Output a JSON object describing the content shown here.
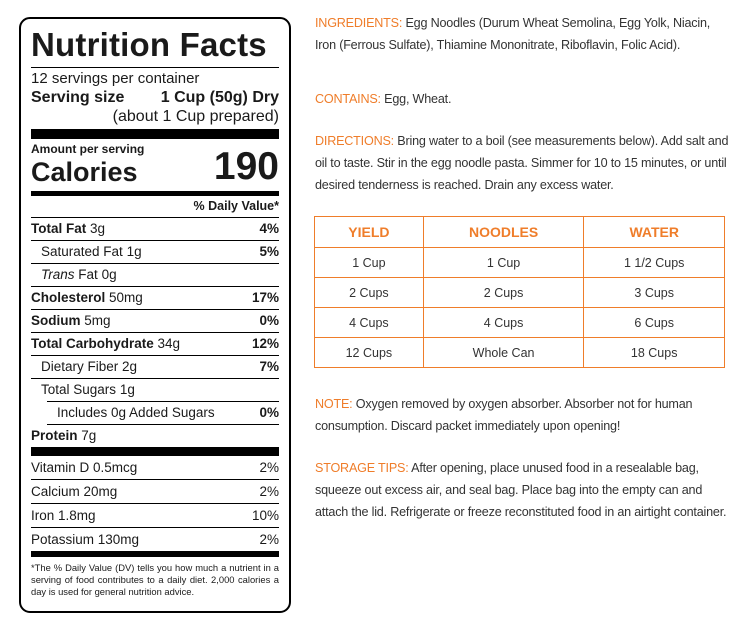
{
  "nutrition": {
    "title": "Nutrition Facts",
    "servings_per_container": "12 servings per container",
    "serving_size_label": "Serving size",
    "serving_size_value": "1 Cup (50g) Dry",
    "serving_size_prepared": "(about 1 Cup prepared)",
    "amount_per_serving": "Amount per serving",
    "calories_label": "Calories",
    "calories_value": "190",
    "daily_value_header": "% Daily Value*",
    "nutrients": [
      {
        "name": "Total Fat",
        "amount": "3g",
        "dv": "4%"
      },
      {
        "name": "Saturated Fat",
        "amount": "1g",
        "dv": "5%"
      },
      {
        "name": "Trans",
        "name_rest": "Fat",
        "amount": "0g",
        "dv": ""
      },
      {
        "name": "Cholesterol",
        "amount": "50mg",
        "dv": "17%"
      },
      {
        "name": "Sodium",
        "amount": "5mg",
        "dv": "0%"
      },
      {
        "name": "Total Carbohydrate",
        "amount": "34g",
        "dv": "12%"
      },
      {
        "name": "Dietary Fiber",
        "amount": "2g",
        "dv": "7%"
      },
      {
        "name": "Total Sugars",
        "amount": "1g",
        "dv": ""
      },
      {
        "name": "Includes 0g Added Sugars",
        "amount": "",
        "dv": "0%"
      },
      {
        "name": "Protein",
        "amount": "7g",
        "dv": ""
      }
    ],
    "vitamins": [
      {
        "name": "Vitamin D 0.5mcg",
        "dv": "2%"
      },
      {
        "name": "Calcium 20mg",
        "dv": "2%"
      },
      {
        "name": "Iron 1.8mg",
        "dv": "10%"
      },
      {
        "name": "Potassium 130mg",
        "dv": "2%"
      }
    ],
    "footnote": "*The % Daily Value (DV) tells you how much a nutrient in a serving of food contributes to a daily diet. 2,000 calories a day is used for general nutrition advice."
  },
  "ingredients": {
    "label": "INGREDIENTS:",
    "text": "Egg Noodles (Durum Wheat Semolina, Egg Yolk, Niacin, Iron (Ferrous Sulfate), Thiamine Mononitrate, Riboflavin, Folic Acid)."
  },
  "contains": {
    "label": "CONTAINS:",
    "text": "Egg, Wheat."
  },
  "directions": {
    "label": "DIRECTIONS:",
    "text": "Bring water to a boil (see measurements below). Add salt and oil to taste. Stir in the egg noodle pasta. Simmer for 10 to 15 minutes, or until desired tenderness is reached. Drain any excess water."
  },
  "yield_table": {
    "headers": [
      "YIELD",
      "NOODLES",
      "WATER"
    ],
    "rows": [
      [
        "1 Cup",
        "1 Cup",
        "1 1/2 Cups"
      ],
      [
        "2 Cups",
        "2 Cups",
        "3 Cups"
      ],
      [
        "4 Cups",
        "4 Cups",
        "6 Cups"
      ],
      [
        "12 Cups",
        "Whole Can",
        "18 Cups"
      ]
    ]
  },
  "note": {
    "label": "NOTE:",
    "text": "Oxygen removed by oxygen absorber. Absorber not for human consumption. Discard packet immediately upon opening!"
  },
  "storage": {
    "label": "STORAGE TIPS:",
    "text": "After opening, place unused food in a resealable bag, squeeze out excess air, and seal bag. Place bag into the empty can and attach the lid. Refrigerate or freeze reconstituted food in an airtight container."
  },
  "colors": {
    "accent": "#ef7d2a",
    "text": "#333333",
    "label_border": "#000000"
  }
}
